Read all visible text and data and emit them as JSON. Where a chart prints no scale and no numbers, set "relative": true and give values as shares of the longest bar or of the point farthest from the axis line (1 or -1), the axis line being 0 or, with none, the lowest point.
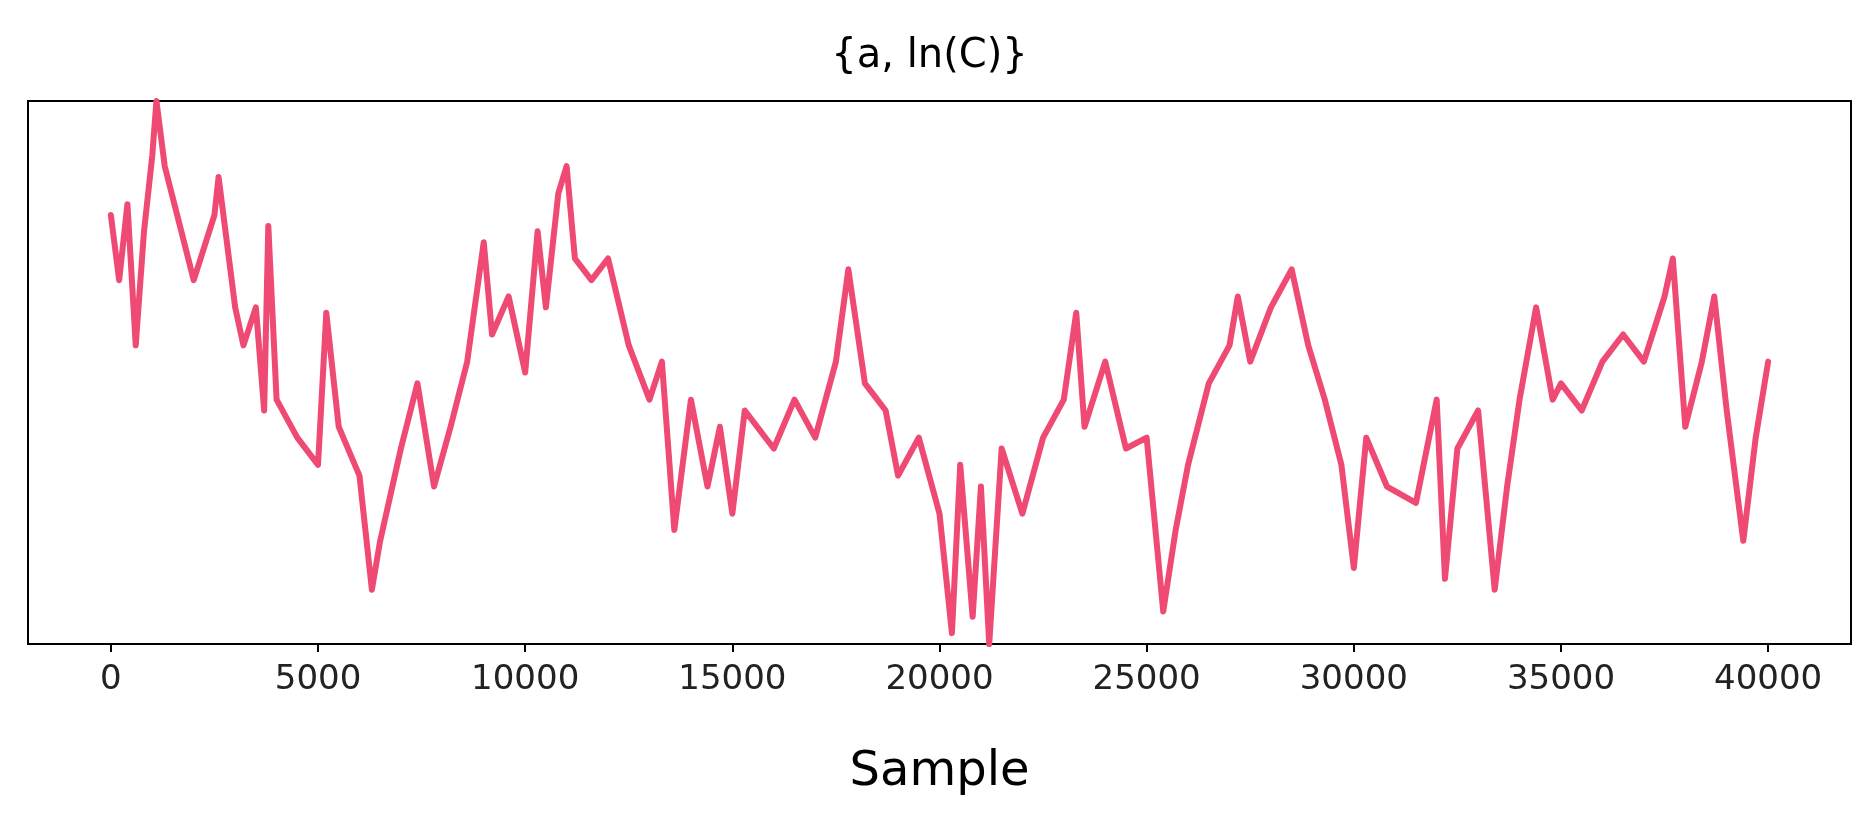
{
  "chart_data": {
    "type": "line",
    "title": "{a, ln(C)}",
    "xlabel": "Sample",
    "relative": true,
    "x": [
      0,
      200,
      400,
      600,
      800,
      1000,
      1100,
      1300,
      1600,
      2000,
      2500,
      2600,
      3000,
      3200,
      3500,
      3700,
      3800,
      4000,
      4500,
      5000,
      5200,
      5500,
      6000,
      6300,
      6500,
      7000,
      7400,
      7800,
      8200,
      8600,
      9000,
      9200,
      9600,
      10000,
      10300,
      10500,
      10800,
      11000,
      11200,
      11600,
      12000,
      12500,
      13000,
      13300,
      13600,
      14000,
      14400,
      14700,
      15000,
      15300,
      16000,
      16500,
      17000,
      17500,
      17800,
      18200,
      18700,
      19000,
      19500,
      20000,
      20300,
      20500,
      20800,
      21000,
      21200,
      21500,
      22000,
      22500,
      23000,
      23300,
      23500,
      24000,
      24500,
      25000,
      25400,
      25700,
      26000,
      26500,
      27000,
      27200,
      27500,
      28000,
      28500,
      28900,
      29300,
      29700,
      30000,
      30300,
      30800,
      31500,
      32000,
      32200,
      32500,
      33000,
      33400,
      33700,
      34000,
      34400,
      34800,
      35000,
      35500,
      36000,
      36500,
      37000,
      37500,
      37700,
      38000,
      38400,
      38700,
      39000,
      39400,
      39700,
      40000
    ],
    "series": [
      {
        "color": "#ee4a73",
        "values": [
          0.79,
          0.67,
          0.81,
          0.55,
          0.76,
          0.9,
          1,
          0.88,
          0.79,
          0.67,
          0.79,
          0.86,
          0.62,
          0.55,
          0.62,
          0.43,
          0.77,
          0.45,
          0.38,
          0.33,
          0.61,
          0.4,
          0.31,
          0.1,
          0.19,
          0.36,
          0.48,
          0.29,
          0.4,
          0.52,
          0.74,
          0.57,
          0.64,
          0.5,
          0.76,
          0.62,
          0.83,
          0.88,
          0.71,
          0.67,
          0.71,
          0.55,
          0.45,
          0.52,
          0.21,
          0.45,
          0.29,
          0.4,
          0.24,
          0.43,
          0.36,
          0.45,
          0.38,
          0.52,
          0.69,
          0.48,
          0.43,
          0.31,
          0.38,
          0.24,
          0.02,
          0.33,
          0.05,
          0.29,
          0,
          0.36,
          0.24,
          0.38,
          0.45,
          0.61,
          0.4,
          0.52,
          0.36,
          0.38,
          0.06,
          0.21,
          0.33,
          0.48,
          0.55,
          0.64,
          0.52,
          0.62,
          0.69,
          0.55,
          0.45,
          0.33,
          0.14,
          0.38,
          0.29,
          0.26,
          0.45,
          0.12,
          0.36,
          0.43,
          0.1,
          0.29,
          0.45,
          0.62,
          0.45,
          0.48,
          0.43,
          0.52,
          0.57,
          0.52,
          0.64,
          0.71,
          0.4,
          0.52,
          0.64,
          0.43,
          0.19,
          0.38,
          0.52
        ]
      }
    ],
    "xlim": [
      -2000,
      42000
    ],
    "xticks": [
      0,
      5000,
      10000,
      15000,
      20000,
      25000,
      30000,
      35000,
      40000
    ],
    "grid": false,
    "marker": "none",
    "line_style": "solid"
  }
}
